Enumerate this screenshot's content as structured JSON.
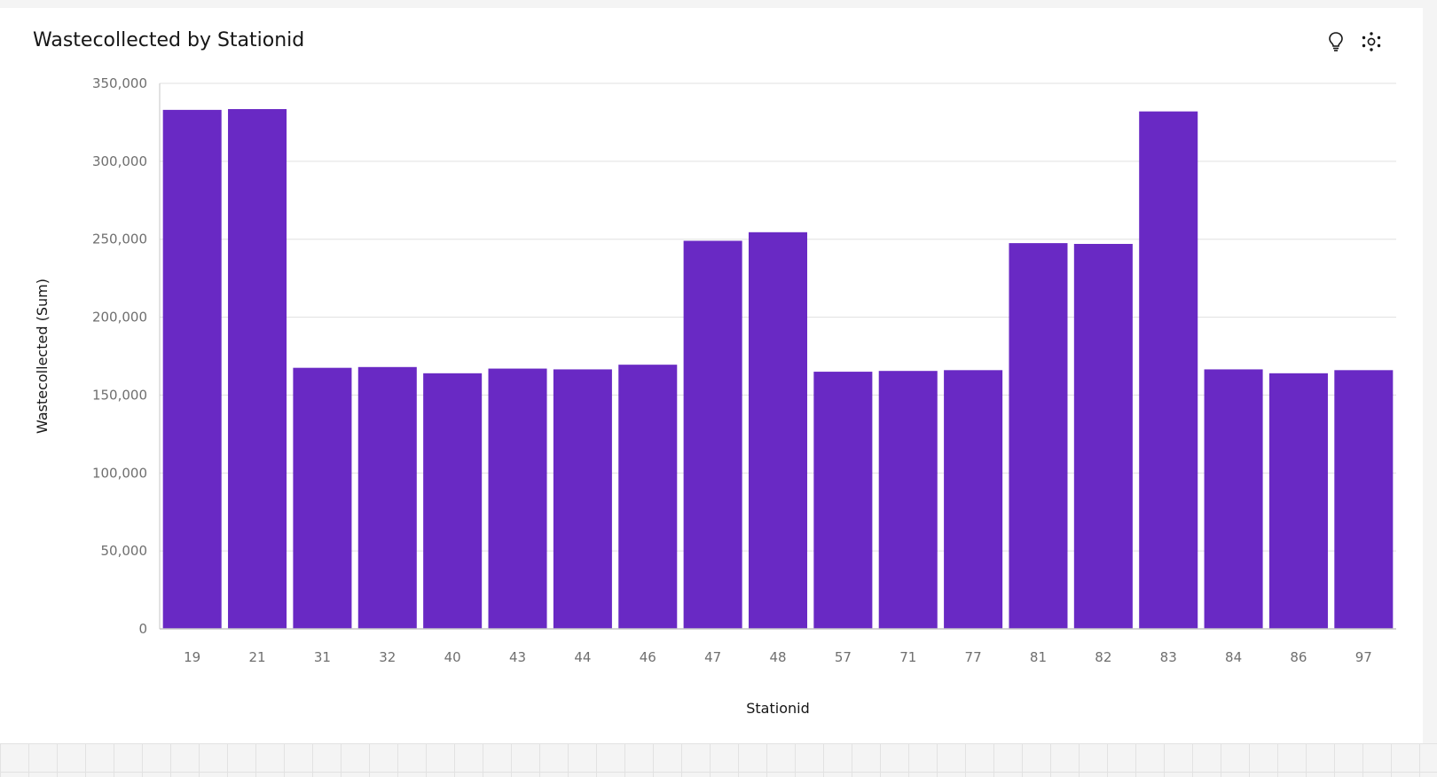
{
  "card": {
    "title": "Wastecollected by Stationid",
    "icons": [
      "lightbulb-icon",
      "settings-dots-icon"
    ]
  },
  "colors": {
    "bar": "#6929c4",
    "grid": "#e0e0e0",
    "axis": "#c6c6c6",
    "tick_text": "#6f6f6f",
    "title_text": "#161616"
  },
  "chart_data": {
    "type": "bar",
    "title": "Wastecollected by Stationid",
    "xlabel": "Stationid",
    "ylabel": "Wastecollected (Sum)",
    "categories": [
      "19",
      "21",
      "31",
      "32",
      "40",
      "43",
      "44",
      "46",
      "47",
      "48",
      "57",
      "71",
      "77",
      "81",
      "82",
      "83",
      "84",
      "86",
      "97"
    ],
    "values": [
      333000,
      333500,
      167500,
      168000,
      164000,
      167000,
      166500,
      169500,
      249000,
      254500,
      165000,
      165500,
      166000,
      247500,
      247000,
      332000,
      166500,
      164000,
      166000
    ],
    "ylim": [
      0,
      350000
    ],
    "yticks": [
      0,
      50000,
      100000,
      150000,
      200000,
      250000,
      300000,
      350000
    ],
    "ytick_labels": [
      "0",
      "50,000",
      "100,000",
      "150,000",
      "200,000",
      "250,000",
      "300,000",
      "350,000"
    ],
    "grid": true,
    "legend": "none"
  }
}
